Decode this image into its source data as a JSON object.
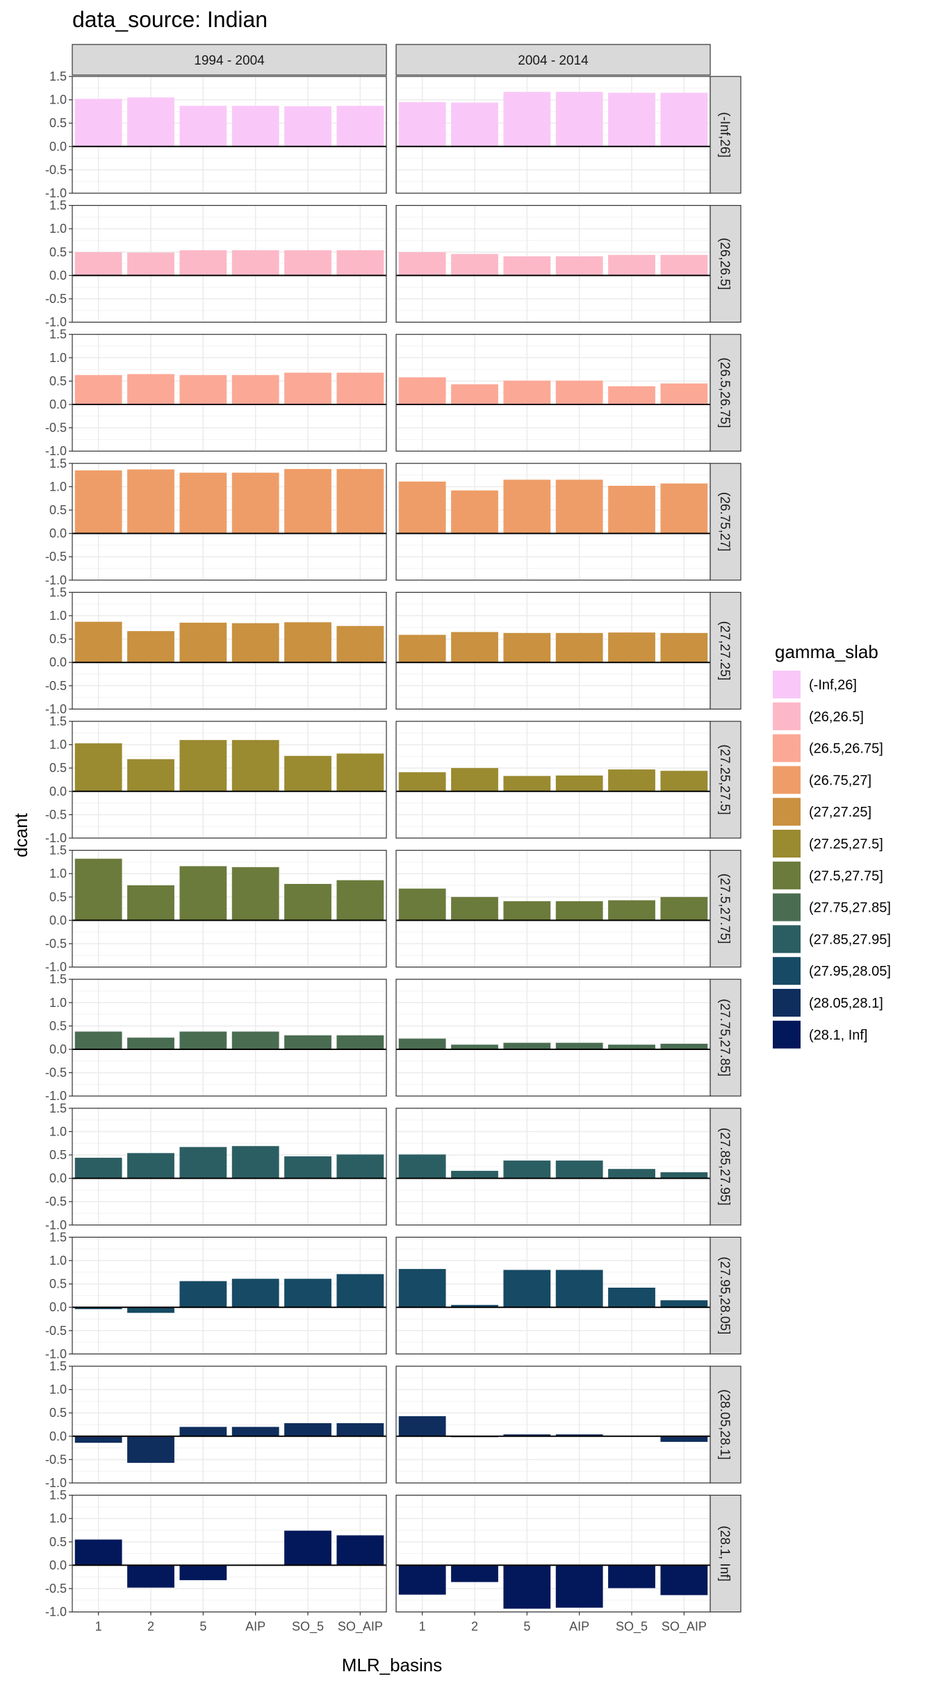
{
  "chart_data": {
    "type": "bar",
    "title": "data_source: Indian",
    "xlabel": "MLR_basins",
    "ylabel": "dcant",
    "ylim": [
      -1.0,
      1.5
    ],
    "yticks": [
      -1.0,
      -0.5,
      0.0,
      0.5,
      1.0,
      1.5
    ],
    "ytick_labels": [
      "-1.0",
      "-0.5",
      "0.0",
      "0.5",
      "1.0",
      "1.5"
    ],
    "categories": [
      "1",
      "2",
      "5",
      "AIP",
      "SO_5",
      "SO_AIP"
    ],
    "columns": [
      "1994 - 2004",
      "2004 - 2014"
    ],
    "grid": true,
    "legend": {
      "title": "gamma_slab",
      "placement": "right",
      "entries": [
        {
          "label": "(-Inf,26]",
          "color": "#F9C8F8"
        },
        {
          "label": "(26,26.5]",
          "color": "#FDB8C8"
        },
        {
          "label": "(26.5,26.75]",
          "color": "#FCA896"
        },
        {
          "label": "(26.75,27]",
          "color": "#EE9D68"
        },
        {
          "label": "(27,27.25]",
          "color": "#C99140"
        },
        {
          "label": "(27.25,27.5]",
          "color": "#9A8A30"
        },
        {
          "label": "(27.5,27.75]",
          "color": "#6B7B3C"
        },
        {
          "label": "(27.75,27.85]",
          "color": "#4A6D52"
        },
        {
          "label": "(27.85,27.95]",
          "color": "#2B5E62"
        },
        {
          "label": "(27.95,28.05]",
          "color": "#174A64"
        },
        {
          "label": "(28.05,28.1]",
          "color": "#0F2E5E"
        },
        {
          "label": "(28.1, Inf]",
          "color": "#03185A"
        }
      ]
    },
    "rows": [
      {
        "label": "(-Inf,26]",
        "values": [
          [
            1.02,
            1.05,
            0.87,
            0.87,
            0.86,
            0.87
          ],
          [
            0.95,
            0.94,
            1.17,
            1.17,
            1.15,
            1.15
          ]
        ]
      },
      {
        "label": "(26,26.5]",
        "values": [
          [
            0.5,
            0.49,
            0.54,
            0.54,
            0.54,
            0.54
          ],
          [
            0.5,
            0.46,
            0.41,
            0.41,
            0.44,
            0.44
          ]
        ]
      },
      {
        "label": "(26.5,26.75]",
        "values": [
          [
            0.63,
            0.65,
            0.63,
            0.63,
            0.68,
            0.68
          ],
          [
            0.58,
            0.43,
            0.51,
            0.51,
            0.39,
            0.45
          ]
        ]
      },
      {
        "label": "(26.75,27]",
        "values": [
          [
            1.35,
            1.37,
            1.3,
            1.3,
            1.38,
            1.38
          ],
          [
            1.11,
            0.92,
            1.15,
            1.15,
            1.02,
            1.07
          ]
        ]
      },
      {
        "label": "(27,27.25]",
        "values": [
          [
            0.87,
            0.67,
            0.85,
            0.84,
            0.86,
            0.78
          ],
          [
            0.59,
            0.65,
            0.63,
            0.63,
            0.64,
            0.63
          ]
        ]
      },
      {
        "label": "(27.25,27.5]",
        "values": [
          [
            1.03,
            0.69,
            1.1,
            1.1,
            0.76,
            0.81
          ],
          [
            0.41,
            0.5,
            0.33,
            0.34,
            0.47,
            0.44
          ]
        ]
      },
      {
        "label": "(27.5,27.75]",
        "values": [
          [
            1.32,
            0.75,
            1.16,
            1.14,
            0.78,
            0.86
          ],
          [
            0.68,
            0.5,
            0.41,
            0.41,
            0.43,
            0.5
          ]
        ]
      },
      {
        "label": "(27.75,27.85]",
        "values": [
          [
            0.38,
            0.25,
            0.38,
            0.38,
            0.3,
            0.3
          ],
          [
            0.23,
            0.1,
            0.14,
            0.14,
            0.1,
            0.12
          ]
        ]
      },
      {
        "label": "(27.85,27.95]",
        "values": [
          [
            0.44,
            0.54,
            0.67,
            0.69,
            0.47,
            0.51
          ],
          [
            0.51,
            0.16,
            0.38,
            0.38,
            0.2,
            0.13
          ]
        ]
      },
      {
        "label": "(27.95,28.05]",
        "values": [
          [
            -0.04,
            -0.12,
            0.56,
            0.61,
            0.61,
            0.71
          ],
          [
            0.82,
            0.05,
            0.8,
            0.8,
            0.42,
            0.15
          ]
        ]
      },
      {
        "label": "(28.05,28.1]",
        "values": [
          [
            -0.14,
            -0.57,
            0.2,
            0.2,
            0.28,
            0.28
          ],
          [
            0.43,
            -0.02,
            0.04,
            0.04,
            -0.01,
            -0.12
          ]
        ]
      },
      {
        "label": "(28.1, Inf]",
        "values": [
          [
            0.55,
            -0.48,
            -0.32,
            0.0,
            0.74,
            0.64
          ],
          [
            -0.63,
            -0.36,
            -0.93,
            -0.91,
            -0.49,
            -0.64
          ]
        ]
      }
    ]
  }
}
